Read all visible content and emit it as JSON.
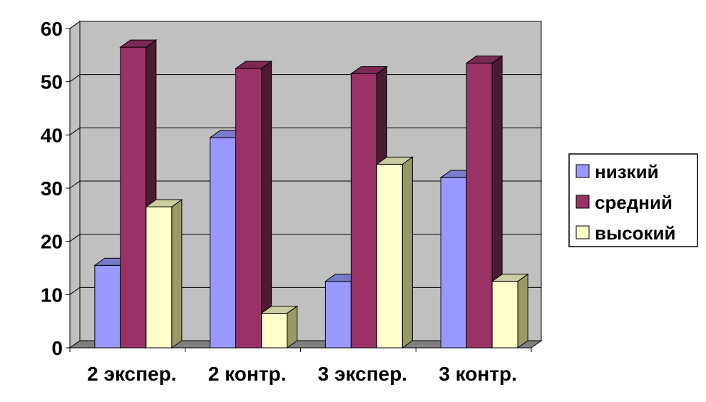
{
  "chart_data": {
    "type": "bar",
    "categories": [
      "2 экспер.",
      "2 контр.",
      "3 экспер.",
      "3 контр."
    ],
    "series": [
      {
        "name": "низкий",
        "values": [
          15.5,
          39.5,
          12.5,
          32
        ]
      },
      {
        "name": "средний",
        "values": [
          56.5,
          52.5,
          51.5,
          53.5
        ]
      },
      {
        "name": "высокий",
        "values": [
          26.5,
          6.5,
          34.5,
          12.5
        ]
      }
    ],
    "ylim": [
      0,
      60
    ],
    "yticks": [
      0,
      10,
      20,
      30,
      40,
      50,
      60
    ],
    "grid": true,
    "legend": "right",
    "colors": {
      "series": [
        "#9999ff",
        "#993366",
        "#ffffcc"
      ],
      "series_side": [
        "#5c5c99",
        "#4d1a33",
        "#999966"
      ],
      "series_top": [
        "#7a7acc",
        "#7a2952",
        "#cccca3"
      ],
      "wall": "#c0c0c0",
      "floor": "#808080"
    }
  }
}
